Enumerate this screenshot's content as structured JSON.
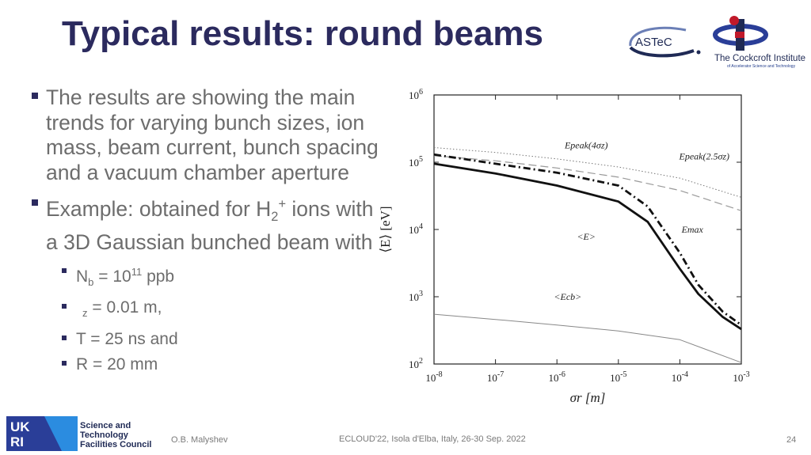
{
  "slide": {
    "title": "Typical results: round beams",
    "bullet1": "The results are showing the main trends for varying bunch sizes, ion mass, beam current, bunch spacing and a vacuum chamber aperture",
    "bullet2": {
      "prefix": "Example: obtained for H",
      "sub": "2",
      "sup": "+",
      "rest": " ions with a 3D Gaussian bunched beam with"
    },
    "params": [
      {
        "pre": "N",
        "sub": "b",
        "mid": " = 10",
        "sup": "11",
        "post": " ppb"
      },
      {
        "pre": "",
        "sub": "z",
        "mid": " = 0.01 m,",
        "sup": "",
        "post": ""
      },
      {
        "pre": "T = 25 ns and",
        "sub": "",
        "mid": "",
        "sup": "",
        "post": ""
      },
      {
        "pre": "R = 20 mm",
        "sub": "",
        "mid": "",
        "sup": "",
        "post": ""
      }
    ]
  },
  "logos": {
    "astec": "ASTeC",
    "cockcroft_name": "The Cockcroft Institute",
    "cockcroft_sub": "of Accelerator Science and Technology",
    "ukri": "UKRI",
    "stfc_line1": "Science and",
    "stfc_line2": "Technology",
    "stfc_line3": "Facilities Council"
  },
  "footer": {
    "author": "O.B. Malyshev",
    "conference": "ECLOUD'22, Isola d'Elba, Italy, 26-30 Sep. 2022",
    "page": "24"
  },
  "chart_data": {
    "type": "line",
    "xscale": "log",
    "yscale": "log",
    "xlim": [
      1e-08,
      0.001
    ],
    "ylim": [
      100,
      1000000
    ],
    "xticks": [
      "10^-8",
      "10^-7",
      "10^-6",
      "10^-5",
      "10^-4",
      "10^-3"
    ],
    "yticks": [
      "10^2",
      "10^3",
      "10^4",
      "10^5",
      "10^6"
    ],
    "xlabel": "σr [m]",
    "ylabel": "⟨E⟩ [eV]",
    "grid": false,
    "series": [
      {
        "name": "Epeak(4σz)",
        "style": "dotted",
        "x": [
          1e-08,
          1e-07,
          1e-06,
          1e-05,
          0.0001,
          0.001
        ],
        "y": [
          165000,
          140000,
          112000,
          85000,
          58000,
          30000
        ]
      },
      {
        "name": "Epeak(2.5σz)",
        "style": "dashed",
        "x": [
          1e-08,
          1e-07,
          1e-06,
          1e-05,
          0.0001,
          0.001
        ],
        "y": [
          125000,
          105000,
          82000,
          60000,
          38000,
          19000
        ]
      },
      {
        "name": "Emax",
        "style": "dashdot",
        "x": [
          1e-08,
          1e-07,
          1e-06,
          1e-05,
          3e-05,
          0.0001,
          0.0002,
          0.0005,
          0.001
        ],
        "y": [
          130000,
          95000,
          70000,
          45000,
          22000,
          4500,
          1500,
          600,
          380
        ]
      },
      {
        "name": "<E>",
        "style": "solid",
        "x": [
          1e-08,
          1e-07,
          1e-06,
          1e-05,
          3e-05,
          0.0001,
          0.0002,
          0.0005,
          0.001
        ],
        "y": [
          95000,
          68000,
          45000,
          26000,
          13000,
          2600,
          1100,
          500,
          330
        ]
      },
      {
        "name": "<Ecb>",
        "style": "thin",
        "x": [
          1e-08,
          1e-07,
          1e-06,
          1e-05,
          0.0001,
          0.001
        ],
        "y": [
          550,
          460,
          380,
          310,
          230,
          105
        ]
      }
    ],
    "annotations": [
      {
        "text": "Epeak(4σz)",
        "x": 3e-06,
        "y": 160000
      },
      {
        "text": "Epeak(2.5σz)",
        "x": 0.00025,
        "y": 110000
      },
      {
        "text": "Emax",
        "x": 0.00016,
        "y": 9000
      },
      {
        "text": "<E>",
        "x": 3e-06,
        "y": 7000
      },
      {
        "text": "<Ecb>",
        "x": 1.5e-06,
        "y": 900
      }
    ]
  }
}
